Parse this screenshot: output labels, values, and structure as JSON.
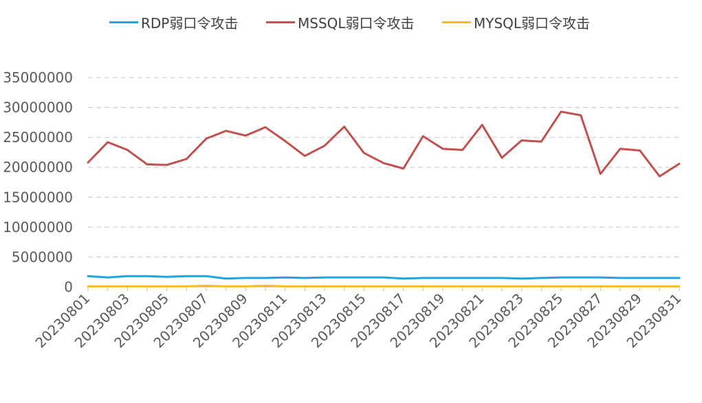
{
  "chart_data": {
    "type": "line",
    "title": "",
    "xlabel": "",
    "ylabel": "",
    "ylim": [
      0,
      35000000
    ],
    "yticks": [
      0,
      5000000,
      10000000,
      15000000,
      20000000,
      25000000,
      30000000,
      35000000
    ],
    "grid": "horizontal dashed",
    "legend_position": "top",
    "categories": [
      "20230801",
      "20230802",
      "20230803",
      "20230804",
      "20230805",
      "20230806",
      "20230807",
      "20230808",
      "20230809",
      "20230810",
      "20230811",
      "20230812",
      "20230813",
      "20230814",
      "20230815",
      "20230816",
      "20230817",
      "20230818",
      "20230819",
      "20230820",
      "20230821",
      "20230822",
      "20230823",
      "20230824",
      "20230825",
      "20230826",
      "20230827",
      "20230828",
      "20230829",
      "20230830",
      "20230831"
    ],
    "xtick_labels": [
      "20230801",
      "20230803",
      "20230805",
      "20230807",
      "20230809",
      "20230811",
      "20230813",
      "20230815",
      "20230817",
      "20230819",
      "20230821",
      "20230823",
      "20230825",
      "20230827",
      "20230829",
      "20230831"
    ],
    "series": [
      {
        "name": "RDP弱口令攻击",
        "color": "#1aa7df",
        "values": [
          1800000,
          1600000,
          1800000,
          1800000,
          1700000,
          1800000,
          1800000,
          1400000,
          1500000,
          1500000,
          1600000,
          1500000,
          1600000,
          1600000,
          1600000,
          1600000,
          1400000,
          1500000,
          1500000,
          1500000,
          1500000,
          1500000,
          1400000,
          1500000,
          1600000,
          1600000,
          1600000,
          1500000,
          1500000,
          1500000,
          1500000
        ]
      },
      {
        "name": "MSSQL弱口令攻击",
        "color": "#c0504d",
        "values": [
          20800000,
          24200000,
          22900000,
          20500000,
          20400000,
          21400000,
          24800000,
          26100000,
          25300000,
          26700000,
          24400000,
          21900000,
          23600000,
          26800000,
          22400000,
          20700000,
          19800000,
          25200000,
          23100000,
          22900000,
          27100000,
          21600000,
          24500000,
          24300000,
          29300000,
          28700000,
          18900000,
          23100000,
          22800000,
          18500000,
          20600000
        ]
      },
      {
        "name": "MYSQL弱口令攻击",
        "color": "#f2bf1a",
        "values": [
          100000,
          100000,
          100000,
          100000,
          100000,
          100000,
          200000,
          100000,
          100000,
          200000,
          100000,
          100000,
          100000,
          100000,
          100000,
          100000,
          100000,
          100000,
          100000,
          100000,
          100000,
          100000,
          100000,
          100000,
          100000,
          100000,
          100000,
          100000,
          100000,
          100000,
          100000
        ]
      }
    ]
  }
}
